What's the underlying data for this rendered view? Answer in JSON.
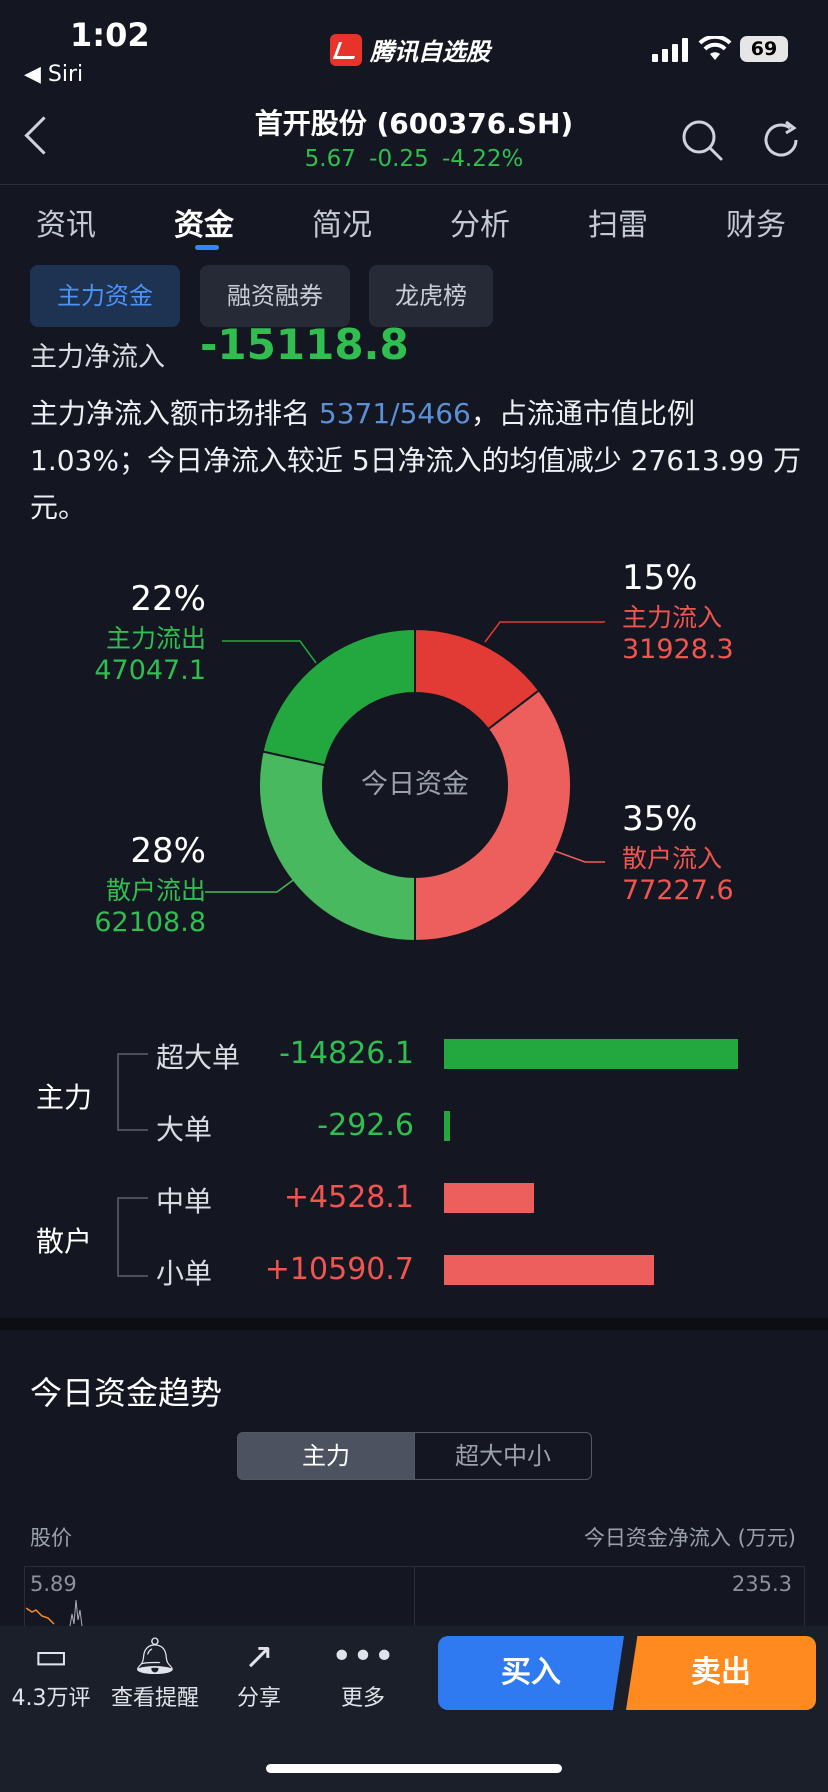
{
  "status_bar": {
    "time": "1:02",
    "back_app": "◀ Siri",
    "app_name": "腾讯自选股",
    "battery": "69"
  },
  "header": {
    "title": "首开股份 (600376.SH)",
    "quote": "5.67  -0.25  -4.22%"
  },
  "tabs": [
    "资讯",
    "资金",
    "简况",
    "分析",
    "扫雷",
    "财务"
  ],
  "subtabs": [
    "主力资金",
    "融资融券",
    "龙虎榜"
  ],
  "net_inflow": {
    "label": "主力净流入",
    "value": "-15118.8"
  },
  "description": {
    "part1": "主力净流入额市场排名 ",
    "rank": "5371/5466",
    "part2": "，占流通市值比例 1.03%；今日净流入较近 5日净流入的均值减少 27613.99 万元。"
  },
  "donut": {
    "center_label": "今日资金",
    "segments": [
      {
        "pct": "15%",
        "label": "主力流入",
        "value": "31928.3",
        "color": "#e23b35"
      },
      {
        "pct": "35%",
        "label": "散户流入",
        "value": "77227.6",
        "color": "#ec5f5c"
      },
      {
        "pct": "28%",
        "label": "散户流出",
        "value": "62108.8",
        "color": "#48b95e"
      },
      {
        "pct": "22%",
        "label": "主力流出",
        "value": "47047.1",
        "color": "#22a83f"
      }
    ]
  },
  "distribution": {
    "groups": [
      "主力",
      "散户"
    ],
    "rows": [
      {
        "label": "超大单",
        "value": "-14826.1",
        "amount": -14826.1
      },
      {
        "label": "大单",
        "value": "-292.6",
        "amount": -292.6
      },
      {
        "label": "中单",
        "value": "+4528.1",
        "amount": 4528.1
      },
      {
        "label": "小单",
        "value": "+10590.7",
        "amount": 10590.7
      }
    ]
  },
  "trend": {
    "title": "今日资金趋势",
    "segments": [
      "主力",
      "超大中小"
    ],
    "left_axis_label": "股价",
    "right_axis_label": "今日资金净流入 (万元)",
    "left_top": "5.89",
    "right_top": "235.3"
  },
  "bottom_bar": {
    "items": [
      {
        "icon": "comment-icon",
        "label": "4.3万评"
      },
      {
        "icon": "bell-icon",
        "label": "查看提醒"
      },
      {
        "icon": "share-icon",
        "label": "分享"
      },
      {
        "icon": "more-icon",
        "label": "更多"
      }
    ],
    "buy": "买入",
    "sell": "卖出"
  }
}
